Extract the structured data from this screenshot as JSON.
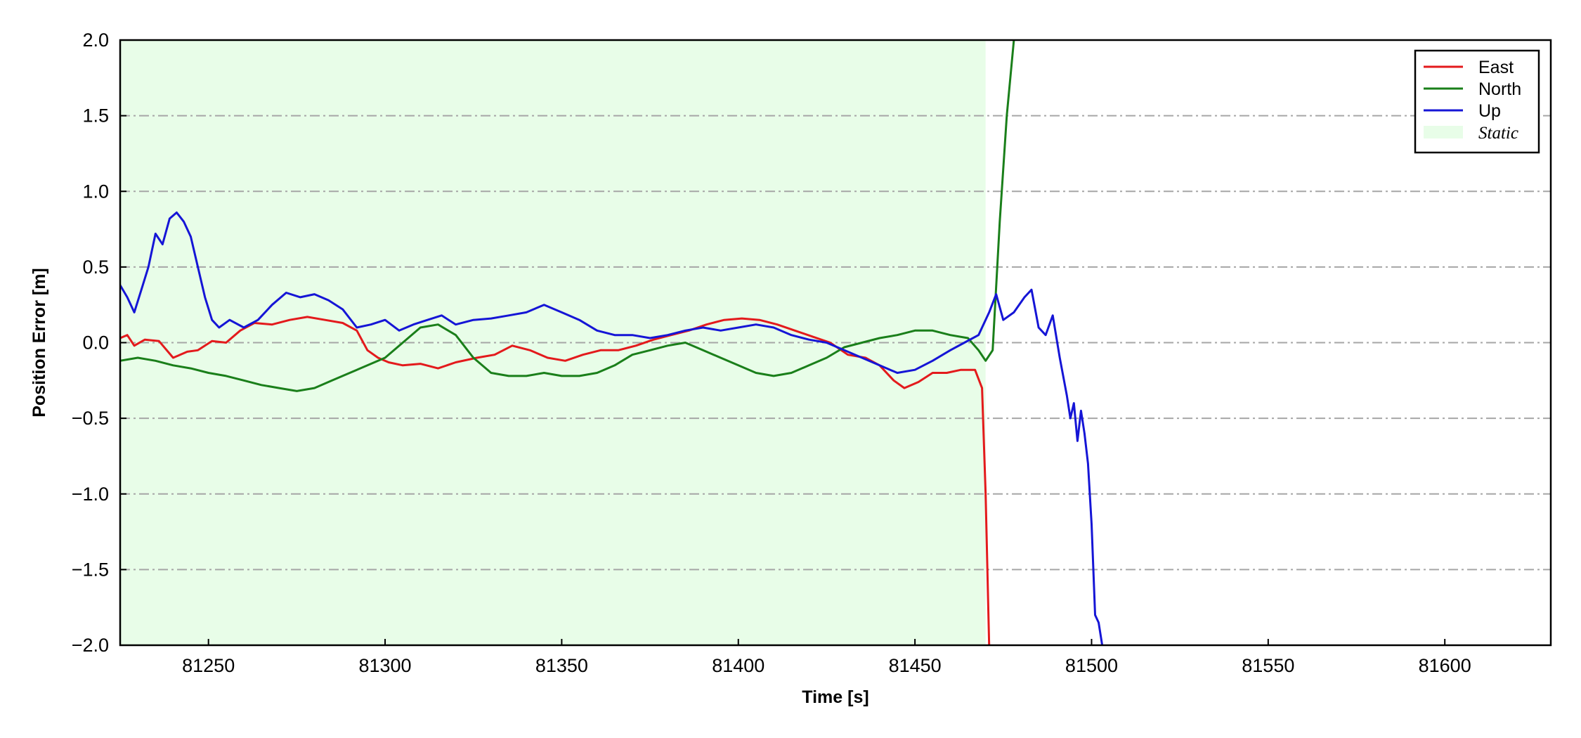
{
  "chart_data": {
    "type": "line",
    "title": "",
    "xlabel": "Time [s]",
    "ylabel": "Position Error [m]",
    "xlim": [
      81225,
      81630
    ],
    "ylim": [
      -2.0,
      2.0
    ],
    "xticks": [
      81250,
      81300,
      81350,
      81400,
      81450,
      81500,
      81550,
      81600
    ],
    "yticks": [
      2.0,
      1.5,
      1.0,
      0.5,
      0.0,
      -0.5,
      -1.0,
      -1.5,
      -2.0
    ],
    "ytick_labels": [
      "2.0",
      "1.5",
      "1.0",
      "0.5",
      "0.0",
      "−0.5",
      "−1.0",
      "−1.5",
      "−2.0"
    ],
    "grid": "horizontal dash-dot",
    "legend_position": "top-right",
    "static_region": {
      "label": "Static",
      "x_start": 81225,
      "x_end": 81470,
      "color": "#e8fde8"
    },
    "series": [
      {
        "name": "East",
        "color": "#e31a1c",
        "x": [
          81225,
          81227,
          81229,
          81232,
          81236,
          81240,
          81244,
          81247,
          81251,
          81255,
          81259,
          81263,
          81268,
          81273,
          81278,
          81283,
          81288,
          81292,
          81295,
          81298,
          81301,
          81305,
          81310,
          81315,
          81320,
          81326,
          81331,
          81336,
          81341,
          81346,
          81351,
          81356,
          81361,
          81366,
          81371,
          81376,
          81381,
          81386,
          81391,
          81396,
          81401,
          81406,
          81411,
          81416,
          81421,
          81426,
          81431,
          81436,
          81440,
          81444,
          81447,
          81451,
          81455,
          81459,
          81463,
          81467,
          81469,
          81470,
          81471
        ],
        "y": [
          0.03,
          0.05,
          -0.02,
          0.02,
          0.01,
          -0.1,
          -0.06,
          -0.05,
          0.01,
          0.0,
          0.08,
          0.13,
          0.12,
          0.15,
          0.17,
          0.15,
          0.13,
          0.08,
          -0.05,
          -0.1,
          -0.13,
          -0.15,
          -0.14,
          -0.17,
          -0.13,
          -0.1,
          -0.08,
          -0.02,
          -0.05,
          -0.1,
          -0.12,
          -0.08,
          -0.05,
          -0.05,
          -0.02,
          0.02,
          0.05,
          0.08,
          0.12,
          0.15,
          0.16,
          0.15,
          0.12,
          0.08,
          0.04,
          0.0,
          -0.08,
          -0.1,
          -0.15,
          -0.25,
          -0.3,
          -0.26,
          -0.2,
          -0.2,
          -0.18,
          -0.18,
          -0.3,
          -1.0,
          -2.0
        ]
      },
      {
        "name": "North",
        "color": "#1a7f1a",
        "x": [
          81225,
          81230,
          81235,
          81240,
          81245,
          81250,
          81255,
          81260,
          81265,
          81270,
          81275,
          81280,
          81285,
          81290,
          81295,
          81300,
          81305,
          81310,
          81315,
          81320,
          81325,
          81330,
          81335,
          81340,
          81345,
          81350,
          81355,
          81360,
          81365,
          81370,
          81375,
          81380,
          81385,
          81390,
          81395,
          81400,
          81405,
          81410,
          81415,
          81420,
          81425,
          81430,
          81435,
          81440,
          81445,
          81450,
          81455,
          81460,
          81465,
          81468,
          81470,
          81472,
          81474,
          81476,
          81478
        ],
        "y": [
          -0.12,
          -0.1,
          -0.12,
          -0.15,
          -0.17,
          -0.2,
          -0.22,
          -0.25,
          -0.28,
          -0.3,
          -0.32,
          -0.3,
          -0.25,
          -0.2,
          -0.15,
          -0.1,
          0.0,
          0.1,
          0.12,
          0.05,
          -0.1,
          -0.2,
          -0.22,
          -0.22,
          -0.2,
          -0.22,
          -0.22,
          -0.2,
          -0.15,
          -0.08,
          -0.05,
          -0.02,
          0.0,
          -0.05,
          -0.1,
          -0.15,
          -0.2,
          -0.22,
          -0.2,
          -0.15,
          -0.1,
          -0.03,
          0.0,
          0.03,
          0.05,
          0.08,
          0.08,
          0.05,
          0.03,
          -0.05,
          -0.12,
          -0.05,
          0.8,
          1.5,
          2.0
        ]
      },
      {
        "name": "Up",
        "color": "#1515d6",
        "x": [
          81225,
          81227,
          81229,
          81231,
          81233,
          81235,
          81237,
          81239,
          81241,
          81243,
          81245,
          81247,
          81249,
          81251,
          81253,
          81256,
          81260,
          81264,
          81268,
          81272,
          81276,
          81280,
          81284,
          81288,
          81292,
          81296,
          81300,
          81304,
          81308,
          81312,
          81316,
          81320,
          81325,
          81330,
          81335,
          81340,
          81345,
          81350,
          81355,
          81360,
          81365,
          81370,
          81375,
          81380,
          81385,
          81390,
          81395,
          81400,
          81405,
          81410,
          81415,
          81420,
          81425,
          81430,
          81435,
          81440,
          81445,
          81450,
          81455,
          81460,
          81464,
          81468,
          81471,
          81473,
          81475,
          81478,
          81481,
          81483,
          81485,
          81487,
          81489,
          81491,
          81493,
          81494,
          81495,
          81496,
          81497,
          81498,
          81499,
          81500,
          81501,
          81502,
          81503
        ],
        "y": [
          0.38,
          0.3,
          0.2,
          0.35,
          0.5,
          0.72,
          0.65,
          0.82,
          0.86,
          0.8,
          0.7,
          0.5,
          0.3,
          0.15,
          0.1,
          0.15,
          0.1,
          0.15,
          0.25,
          0.33,
          0.3,
          0.32,
          0.28,
          0.22,
          0.1,
          0.12,
          0.15,
          0.08,
          0.12,
          0.15,
          0.18,
          0.12,
          0.15,
          0.16,
          0.18,
          0.2,
          0.25,
          0.2,
          0.15,
          0.08,
          0.05,
          0.05,
          0.03,
          0.05,
          0.08,
          0.1,
          0.08,
          0.1,
          0.12,
          0.1,
          0.05,
          0.02,
          0.0,
          -0.05,
          -0.1,
          -0.15,
          -0.2,
          -0.18,
          -0.12,
          -0.05,
          0.0,
          0.05,
          0.2,
          0.32,
          0.15,
          0.2,
          0.3,
          0.35,
          0.1,
          0.05,
          0.18,
          -0.1,
          -0.35,
          -0.5,
          -0.4,
          -0.65,
          -0.45,
          -0.6,
          -0.8,
          -1.2,
          -1.8,
          -1.85,
          -2.0
        ]
      }
    ]
  }
}
